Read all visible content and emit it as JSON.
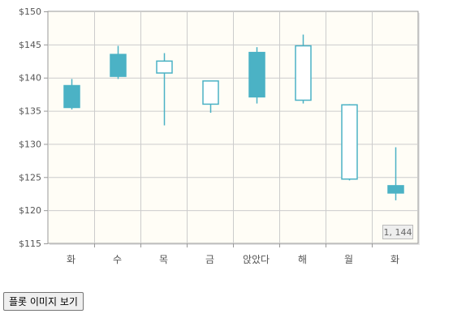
{
  "chart_data": {
    "type": "candlestick",
    "title": "",
    "xlabel": "",
    "ylabel": "",
    "ylim": [
      115,
      150
    ],
    "yticks": [
      "$115",
      "$120",
      "$125",
      "$130",
      "$135",
      "$140",
      "$145",
      "$150"
    ],
    "ytick_values": [
      115,
      120,
      125,
      130,
      135,
      140,
      145,
      150
    ],
    "grid": true,
    "categories": [
      "화",
      "수",
      "목",
      "금",
      "앉았다",
      "해",
      "월",
      "화"
    ],
    "candles": [
      {
        "label": "화",
        "open": 135.5,
        "close": 138.8,
        "low": 135.2,
        "high": 139.8
      },
      {
        "label": "수",
        "open": 140.2,
        "close": 143.5,
        "low": 139.8,
        "high": 144.8
      },
      {
        "label": "목",
        "open": 142.5,
        "close": 140.7,
        "low": 132.8,
        "high": 143.7
      },
      {
        "label": "금",
        "open": 139.5,
        "close": 136.0,
        "low": 134.7,
        "high": 139.5
      },
      {
        "label": "앉았다",
        "open": 137.1,
        "close": 143.8,
        "low": 136.1,
        "high": 144.6
      },
      {
        "label": "해",
        "open": 144.8,
        "close": 136.6,
        "low": 136.1,
        "high": 146.5
      },
      {
        "label": "월",
        "open": 135.9,
        "close": 124.7,
        "low": 124.5,
        "high": 136.0
      },
      {
        "label": "화",
        "open": 122.6,
        "close": 123.7,
        "low": 121.5,
        "high": 129.5
      }
    ],
    "colors": {
      "up": "#4bb2c5",
      "down_fill": "#ffffff",
      "stroke": "#4bb2c5",
      "plot_bg": "#fffdf6",
      "grid": "#cccccc",
      "frame": "#999999"
    }
  },
  "cursor_readout": "1, 144",
  "button": {
    "label": "플롯 이미지 보기"
  }
}
